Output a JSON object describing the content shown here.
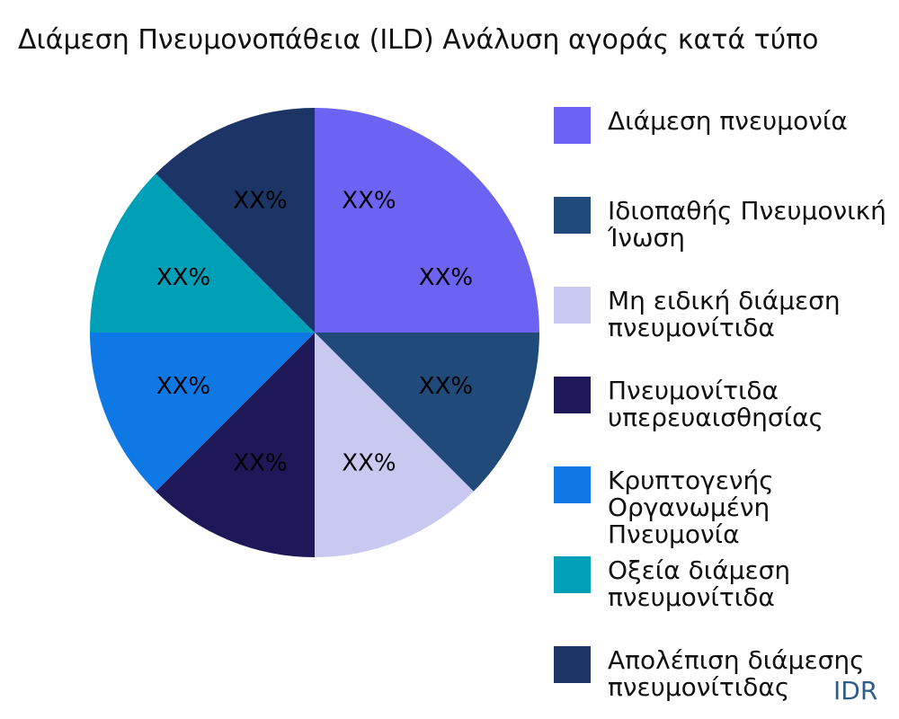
{
  "chart_data": {
    "type": "pie",
    "title": "Διάμεση Πνευμονοπάθεια (ILD) Ανάλυση αγοράς κατά τύπο",
    "slices": [
      {
        "name": "Διάμεση πνευμονία",
        "value": 25,
        "label": "XX%",
        "color": "#6c63f2"
      },
      {
        "name": "Ιδιοπαθής Πνευμονική Ίνωση",
        "value": 12.5,
        "label": "XX%",
        "color": "#1f4a7a"
      },
      {
        "name": "Μη ειδική διάμεση πνευμονίτιδα",
        "value": 12.5,
        "label": "XX%",
        "color": "#c8c8f0"
      },
      {
        "name": "Πνευμονίτιδα υπερευαισθησίας",
        "value": 12.5,
        "label": "XX%",
        "color": "#1e1858"
      },
      {
        "name": "Κρυπτογενής Οργανωμένη Πνευμονία",
        "value": 12.5,
        "label": "XX%",
        "color": "#0e78e4"
      },
      {
        "name": "Οξεία διάμεση πνευμονίτιδα",
        "value": 12.5,
        "label": "XX%",
        "color": "#009fb8"
      },
      {
        "name": "Απολέπιση διάμεσης πνευμονίτιδας",
        "value": 12.5,
        "label": "XX%",
        "color": "#1c3566"
      }
    ],
    "legend": {
      "position": "right",
      "items": [
        "Διάμεση πνευμονία",
        "Ιδιοπαθής Πνευμονική\nΊνωση",
        "Μη ειδική διάμεση\nπνευμονίτιδα",
        "Πνευμονίτιδα\nυπερευαισθησίας",
        "Κρυπτογενής Οργανωμένη\nΠνευμονία",
        "Οξεία διάμεση\nπνευμονίτιδα",
        "Απολέπιση διάμεσης\nπνευμονίτιδας"
      ]
    }
  },
  "watermark": "IDR"
}
